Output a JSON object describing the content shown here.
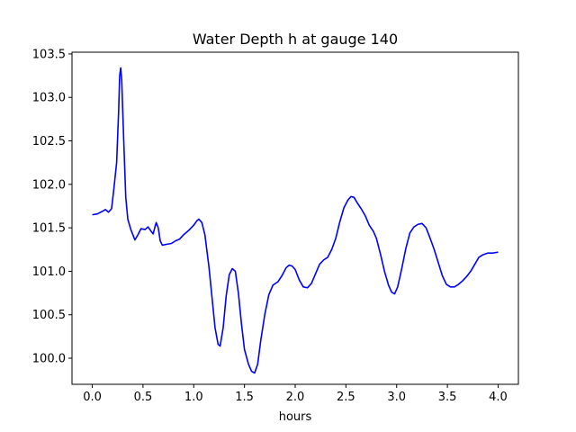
{
  "chart_data": {
    "type": "line",
    "title": "Water Depth h at gauge 140",
    "xlabel": "hours",
    "ylabel": "",
    "xlim": [
      -0.2,
      4.2
    ],
    "ylim": [
      99.7,
      103.52
    ],
    "grid": false,
    "x_ticks": [
      "0.0",
      "0.5",
      "1.0",
      "1.5",
      "2.0",
      "2.5",
      "3.0",
      "3.5",
      "4.0"
    ],
    "y_ticks": [
      "100.0",
      "100.5",
      "101.0",
      "101.5",
      "102.0",
      "102.5",
      "103.0",
      "103.5"
    ],
    "series": [
      {
        "color": "#0000ff",
        "points": [
          [
            0.0,
            101.65
          ],
          [
            0.05,
            101.66
          ],
          [
            0.1,
            101.69
          ],
          [
            0.13,
            101.71
          ],
          [
            0.16,
            101.68
          ],
          [
            0.19,
            101.72
          ],
          [
            0.21,
            101.92
          ],
          [
            0.24,
            102.25
          ],
          [
            0.26,
            102.85
          ],
          [
            0.27,
            103.25
          ],
          [
            0.28,
            103.34
          ],
          [
            0.29,
            103.2
          ],
          [
            0.31,
            102.5
          ],
          [
            0.33,
            101.85
          ],
          [
            0.35,
            101.6
          ],
          [
            0.38,
            101.48
          ],
          [
            0.42,
            101.36
          ],
          [
            0.45,
            101.42
          ],
          [
            0.48,
            101.49
          ],
          [
            0.52,
            101.48
          ],
          [
            0.55,
            101.51
          ],
          [
            0.58,
            101.46
          ],
          [
            0.6,
            101.43
          ],
          [
            0.62,
            101.52
          ],
          [
            0.63,
            101.56
          ],
          [
            0.65,
            101.5
          ],
          [
            0.67,
            101.35
          ],
          [
            0.69,
            101.3
          ],
          [
            0.73,
            101.31
          ],
          [
            0.78,
            101.32
          ],
          [
            0.82,
            101.35
          ],
          [
            0.86,
            101.37
          ],
          [
            0.9,
            101.42
          ],
          [
            0.95,
            101.47
          ],
          [
            1.0,
            101.53
          ],
          [
            1.03,
            101.58
          ],
          [
            1.05,
            101.6
          ],
          [
            1.08,
            101.56
          ],
          [
            1.11,
            101.42
          ],
          [
            1.15,
            101.05
          ],
          [
            1.18,
            100.7
          ],
          [
            1.21,
            100.35
          ],
          [
            1.24,
            100.16
          ],
          [
            1.26,
            100.14
          ],
          [
            1.29,
            100.35
          ],
          [
            1.32,
            100.72
          ],
          [
            1.35,
            100.96
          ],
          [
            1.38,
            101.03
          ],
          [
            1.41,
            101.0
          ],
          [
            1.44,
            100.75
          ],
          [
            1.47,
            100.4
          ],
          [
            1.5,
            100.1
          ],
          [
            1.54,
            99.93
          ],
          [
            1.57,
            99.85
          ],
          [
            1.6,
            99.83
          ],
          [
            1.63,
            99.93
          ],
          [
            1.66,
            100.2
          ],
          [
            1.7,
            100.5
          ],
          [
            1.74,
            100.73
          ],
          [
            1.78,
            100.84
          ],
          [
            1.83,
            100.88
          ],
          [
            1.87,
            100.95
          ],
          [
            1.91,
            101.04
          ],
          [
            1.94,
            101.07
          ],
          [
            1.97,
            101.06
          ],
          [
            2.0,
            101.02
          ],
          [
            2.04,
            100.9
          ],
          [
            2.08,
            100.82
          ],
          [
            2.12,
            100.81
          ],
          [
            2.16,
            100.86
          ],
          [
            2.2,
            100.97
          ],
          [
            2.24,
            101.08
          ],
          [
            2.28,
            101.13
          ],
          [
            2.32,
            101.16
          ],
          [
            2.36,
            101.25
          ],
          [
            2.4,
            101.38
          ],
          [
            2.44,
            101.57
          ],
          [
            2.48,
            101.73
          ],
          [
            2.52,
            101.82
          ],
          [
            2.55,
            101.86
          ],
          [
            2.58,
            101.85
          ],
          [
            2.61,
            101.79
          ],
          [
            2.65,
            101.72
          ],
          [
            2.69,
            101.64
          ],
          [
            2.73,
            101.53
          ],
          [
            2.77,
            101.46
          ],
          [
            2.8,
            101.38
          ],
          [
            2.84,
            101.2
          ],
          [
            2.88,
            101.0
          ],
          [
            2.92,
            100.84
          ],
          [
            2.95,
            100.76
          ],
          [
            2.98,
            100.74
          ],
          [
            3.01,
            100.82
          ],
          [
            3.05,
            101.03
          ],
          [
            3.09,
            101.26
          ],
          [
            3.13,
            101.44
          ],
          [
            3.17,
            101.51
          ],
          [
            3.21,
            101.54
          ],
          [
            3.25,
            101.55
          ],
          [
            3.29,
            101.5
          ],
          [
            3.33,
            101.38
          ],
          [
            3.37,
            101.25
          ],
          [
            3.41,
            101.1
          ],
          [
            3.45,
            100.95
          ],
          [
            3.49,
            100.85
          ],
          [
            3.53,
            100.82
          ],
          [
            3.57,
            100.82
          ],
          [
            3.61,
            100.85
          ],
          [
            3.65,
            100.89
          ],
          [
            3.69,
            100.94
          ],
          [
            3.73,
            101.0
          ],
          [
            3.77,
            101.08
          ],
          [
            3.81,
            101.16
          ],
          [
            3.85,
            101.19
          ],
          [
            3.9,
            101.21
          ],
          [
            3.95,
            101.21
          ],
          [
            4.0,
            101.22
          ]
        ]
      }
    ]
  }
}
